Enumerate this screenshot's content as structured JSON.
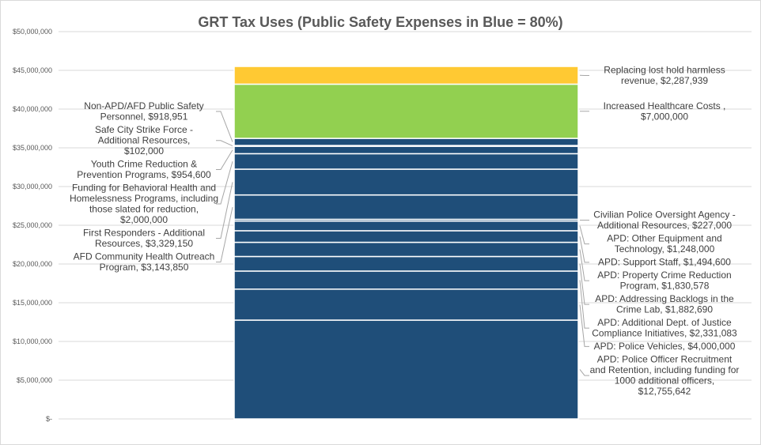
{
  "chart_data": {
    "type": "bar",
    "subtype": "stacked-single-column",
    "title": "GRT Tax Uses (Public Safety Expenses in Blue = 80%)",
    "xlabel": "",
    "ylabel": "",
    "ylim": [
      0,
      50000000
    ],
    "tick_values": [
      0,
      5000000,
      10000000,
      15000000,
      20000000,
      25000000,
      30000000,
      35000000,
      40000000,
      45000000,
      50000000
    ],
    "tick_labels": [
      "$-",
      "$5,000,000",
      "$10,000,000",
      "$15,000,000",
      "$20,000,000",
      "$25,000,000",
      "$30,000,000",
      "$35,000,000",
      "$40,000,000",
      "$45,000,000",
      "$50,000,000"
    ],
    "grid": true,
    "legend": "none",
    "colors": {
      "public_safety": "#1f4e79",
      "healthcare": "#92d050",
      "hold_harmless": "#ffc933",
      "gridline": "#d9d9d9",
      "leader": "#a6a6a6"
    },
    "segments": [
      {
        "lines": [
          "APD: Police Officer Recruitment",
          "and Retention, including funding for",
          "1000 additional officers,",
          "$12,755,642"
        ],
        "value": 12755642,
        "color": "#1f4e79",
        "side": "right"
      },
      {
        "lines": [
          "APD: Police Vehicles,  $4,000,000"
        ],
        "value": 4000000,
        "color": "#1f4e79",
        "side": "right"
      },
      {
        "lines": [
          "APD: Additional Dept. of Justice",
          "Compliance Initiatives,  $2,331,083"
        ],
        "value": 2331083,
        "color": "#1f4e79",
        "side": "right"
      },
      {
        "lines": [
          "APD: Addressing Backlogs in the",
          "Crime Lab,  $1,882,690"
        ],
        "value": 1882690,
        "color": "#1f4e79",
        "side": "right"
      },
      {
        "lines": [
          "APD: Property Crime Reduction",
          "Program,  $1,830,578"
        ],
        "value": 1830578,
        "color": "#1f4e79",
        "side": "right"
      },
      {
        "lines": [
          "APD: Support Staff,  $1,494,600"
        ],
        "value": 1494600,
        "color": "#1f4e79",
        "side": "right"
      },
      {
        "lines": [
          "APD: Other Equipment and",
          "Technology,  $1,248,000"
        ],
        "value": 1248000,
        "color": "#1f4e79",
        "side": "right"
      },
      {
        "lines": [
          "Civilian Police Oversight Agency -",
          "Additional Resources,  $227,000"
        ],
        "value": 227000,
        "color": "#1f4e79",
        "side": "right"
      },
      {
        "lines": [
          "AFD Community Health Outreach",
          "Program,  $3,143,850"
        ],
        "value": 3143850,
        "color": "#1f4e79",
        "side": "left"
      },
      {
        "lines": [
          "First Responders - Additional",
          "Resources,  $3,329,150"
        ],
        "value": 3329150,
        "color": "#1f4e79",
        "side": "left"
      },
      {
        "lines": [
          "Funding for Behavioral Health and",
          "Homelessness Programs, including",
          "those slated for reduction,",
          "$2,000,000"
        ],
        "value": 2000000,
        "color": "#1f4e79",
        "side": "left"
      },
      {
        "lines": [
          "Youth Crime Reduction &",
          "Prevention Programs,  $954,600"
        ],
        "value": 954600,
        "color": "#1f4e79",
        "side": "left"
      },
      {
        "lines": [
          "Safe City Strike Force -",
          "Additional Resources,",
          "$102,000"
        ],
        "value": 102000,
        "color": "#1f4e79",
        "side": "left"
      },
      {
        "lines": [
          "Non-APD/AFD Public Safety",
          "Personnel,  $918,951"
        ],
        "value": 918951,
        "color": "#1f4e79",
        "side": "left"
      },
      {
        "lines": [
          "Increased Healthcare Costs ,",
          "$7,000,000"
        ],
        "value": 7000000,
        "color": "#92d050",
        "side": "right"
      },
      {
        "lines": [
          "Replacing lost hold harmless",
          "revenue,  $2,287,939"
        ],
        "value": 2287939,
        "color": "#ffc933",
        "side": "right"
      }
    ]
  }
}
